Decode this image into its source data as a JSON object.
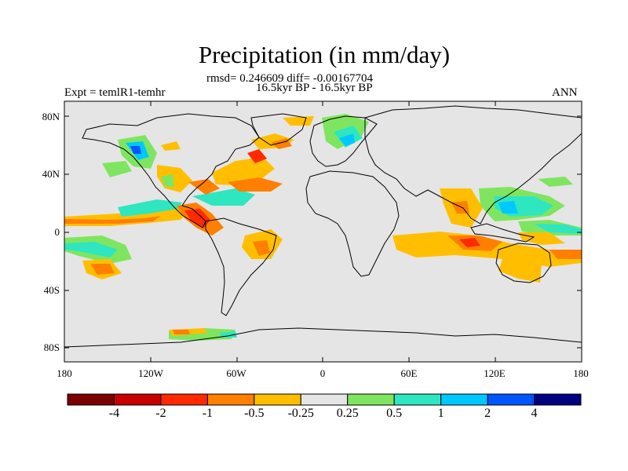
{
  "title": "Precipitation (in mm/day)",
  "stats_line": "rmsd= 0.246609 diff= -0.00167704",
  "period_line": "16.5kyr BP - 16.5kyr BP",
  "expt_label": "Expt = temlR1-temhr",
  "season_label": "ANN",
  "lat_labels": [
    "80N",
    "40N",
    "0",
    "40S",
    "80S"
  ],
  "lon_labels": [
    "180",
    "120W",
    "60W",
    "0",
    "60E",
    "120E",
    "180"
  ],
  "colorbar": {
    "colors": [
      "#7b0000",
      "#c80000",
      "#ff2a00",
      "#ff7f00",
      "#ffbf00",
      "#e5e5e5",
      "#7fe560",
      "#2ee6c0",
      "#00c8ff",
      "#0055ff",
      "#000080"
    ],
    "labels": [
      "-4",
      "-2",
      "-1",
      "-0.5",
      "-0.25",
      "0.25",
      "0.5",
      "1",
      "2",
      "4"
    ]
  },
  "background_color": "#e5e5e5"
}
